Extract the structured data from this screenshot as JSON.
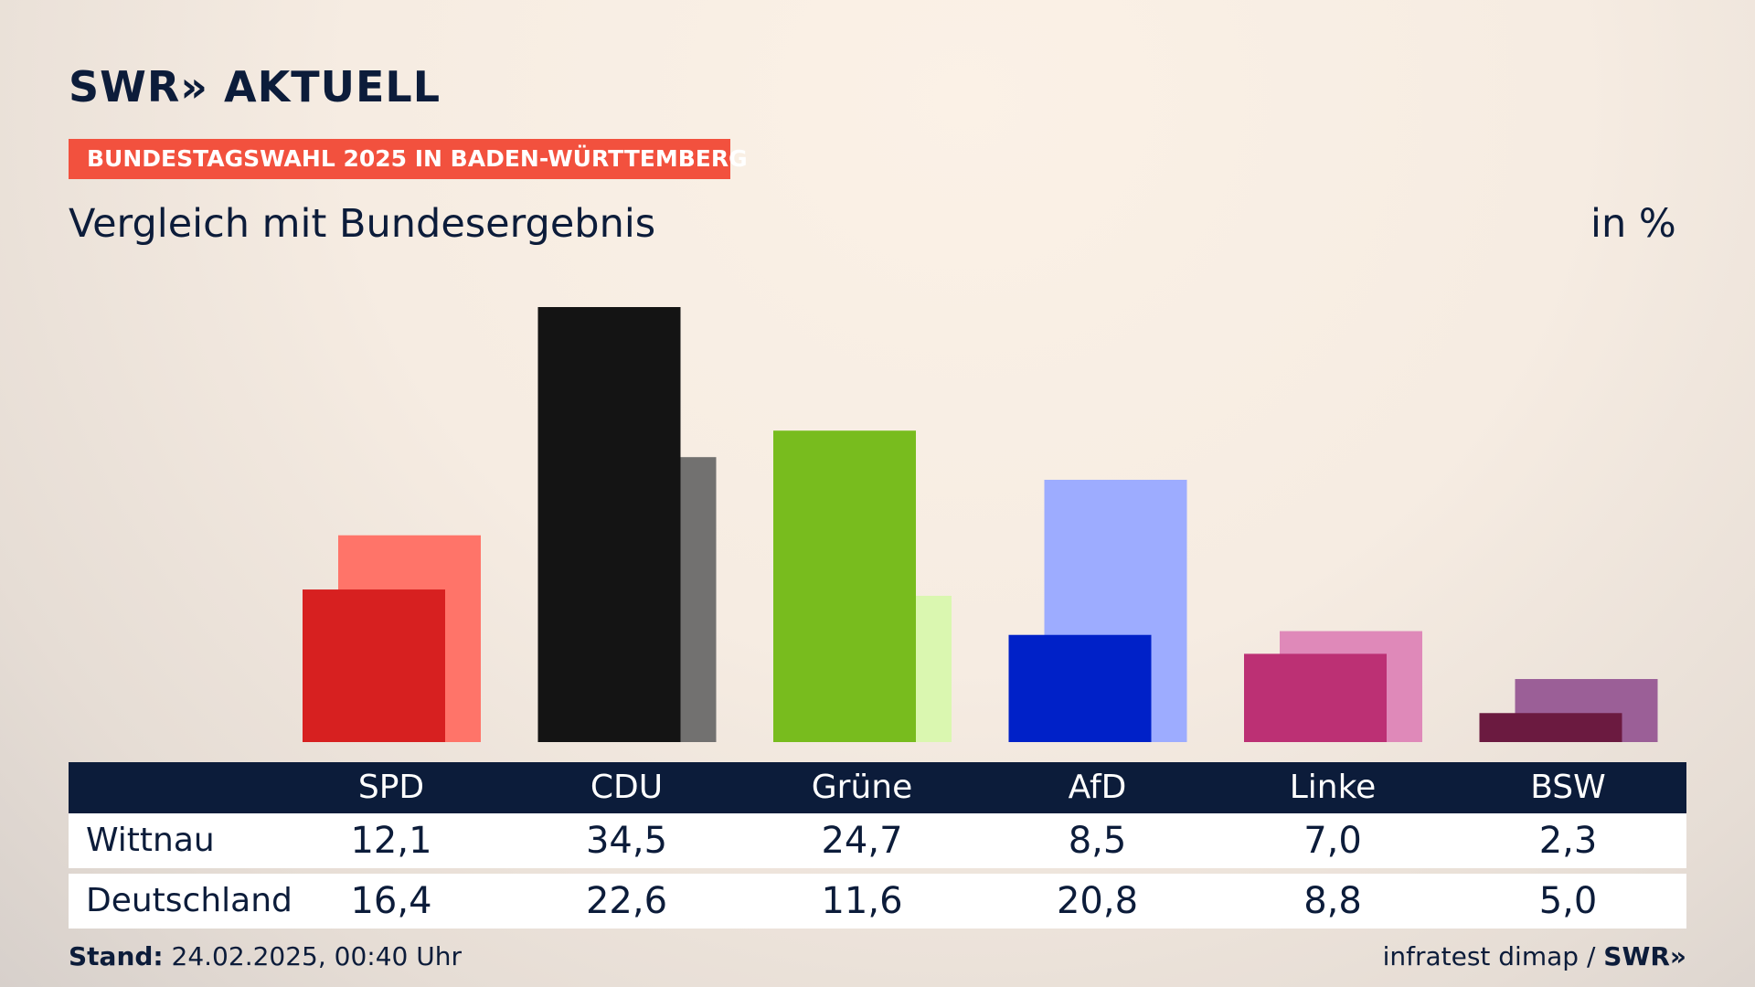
{
  "logo": {
    "text": "SWR» AKTUELL"
  },
  "banner": "BUNDESTAGSWAHL 2025 IN BADEN-WÜRTTEMBERG",
  "subtitle": "Vergleich mit Bundesergebnis",
  "unit": "in %",
  "table": {
    "row_labels": [
      "Wittnau",
      "Deutschland"
    ]
  },
  "footer": {
    "stand_label": "Stand:",
    "stand_value": "24.02.2025, 00:40 Uhr",
    "source": "infratest dimap",
    "separator": "/",
    "source_logo": "SWR»"
  },
  "chart_data": {
    "type": "bar",
    "categories": [
      "SPD",
      "CDU",
      "Grüne",
      "AfD",
      "Linke",
      "BSW"
    ],
    "series": [
      {
        "name": "Wittnau",
        "values": [
          12.1,
          34.5,
          24.7,
          8.5,
          7.0,
          2.3
        ],
        "display": [
          "12,1",
          "34,5",
          "24,7",
          "8,5",
          "7,0",
          "2,3"
        ]
      },
      {
        "name": "Deutschland",
        "values": [
          16.4,
          22.6,
          11.6,
          20.8,
          8.8,
          5.0
        ],
        "display": [
          "16,4",
          "22,6",
          "11,6",
          "20,8",
          "8,8",
          "5,0"
        ]
      }
    ],
    "colors": {
      "primary": [
        "#d72020",
        "#141414",
        "#78bc1e",
        "#0021c8",
        "#bc3074",
        "#6b1a40"
      ],
      "secondary": [
        "#ff7469",
        "#727170",
        "#daf7b0",
        "#9dacff",
        "#df89b9",
        "#9b5f97"
      ]
    },
    "ylim": [
      0,
      34.5
    ],
    "grid": false,
    "legend": "table below chart"
  }
}
